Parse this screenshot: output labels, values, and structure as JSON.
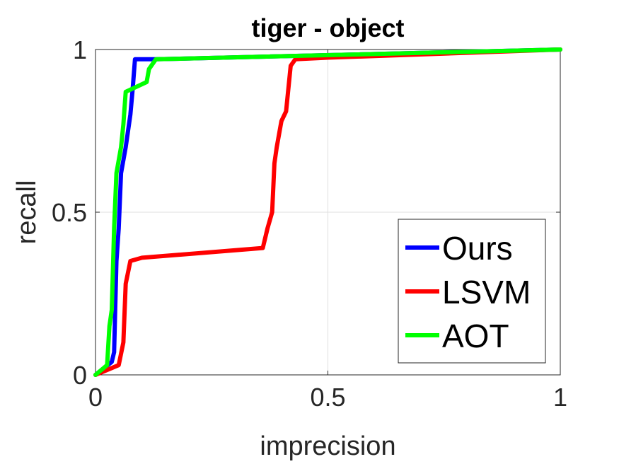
{
  "chart_data": {
    "type": "line",
    "title": "tiger - object",
    "xlabel": "imprecision",
    "ylabel": "recall",
    "xlim": [
      0,
      1
    ],
    "ylim": [
      0,
      1
    ],
    "xticks": [
      0,
      0.5,
      1
    ],
    "xtick_labels": [
      "0",
      "0.5",
      "1"
    ],
    "yticks": [
      0,
      0.5,
      1
    ],
    "ytick_labels": [
      "0",
      "0.5",
      "1"
    ],
    "grid": true,
    "legend_position": "bottom-right",
    "series": [
      {
        "name": "Ours",
        "color": "#0000ff",
        "points": [
          [
            0,
            0
          ],
          [
            0.035,
            0.04
          ],
          [
            0.04,
            0.07
          ],
          [
            0.045,
            0.35
          ],
          [
            0.05,
            0.45
          ],
          [
            0.055,
            0.62
          ],
          [
            0.065,
            0.7
          ],
          [
            0.075,
            0.8
          ],
          [
            0.08,
            0.88
          ],
          [
            0.085,
            0.97
          ],
          [
            0.12,
            0.97
          ],
          [
            0.13,
            0.97
          ],
          [
            1,
            1
          ]
        ]
      },
      {
        "name": "LSVM",
        "color": "#ff0000",
        "points": [
          [
            0,
            0
          ],
          [
            0.05,
            0.03
          ],
          [
            0.06,
            0.1
          ],
          [
            0.065,
            0.28
          ],
          [
            0.075,
            0.35
          ],
          [
            0.1,
            0.36
          ],
          [
            0.36,
            0.39
          ],
          [
            0.37,
            0.45
          ],
          [
            0.38,
            0.5
          ],
          [
            0.385,
            0.65
          ],
          [
            0.39,
            0.7
          ],
          [
            0.4,
            0.78
          ],
          [
            0.41,
            0.81
          ],
          [
            0.42,
            0.95
          ],
          [
            0.43,
            0.97
          ],
          [
            0.5,
            0.975
          ],
          [
            1,
            1
          ]
        ]
      },
      {
        "name": "AOT",
        "color": "#00ff00",
        "points": [
          [
            0,
            0
          ],
          [
            0.025,
            0.03
          ],
          [
            0.03,
            0.15
          ],
          [
            0.035,
            0.2
          ],
          [
            0.04,
            0.45
          ],
          [
            0.045,
            0.62
          ],
          [
            0.055,
            0.7
          ],
          [
            0.06,
            0.77
          ],
          [
            0.065,
            0.87
          ],
          [
            0.11,
            0.9
          ],
          [
            0.115,
            0.94
          ],
          [
            0.125,
            0.96
          ],
          [
            0.13,
            0.97
          ],
          [
            1,
            1
          ]
        ]
      }
    ]
  }
}
